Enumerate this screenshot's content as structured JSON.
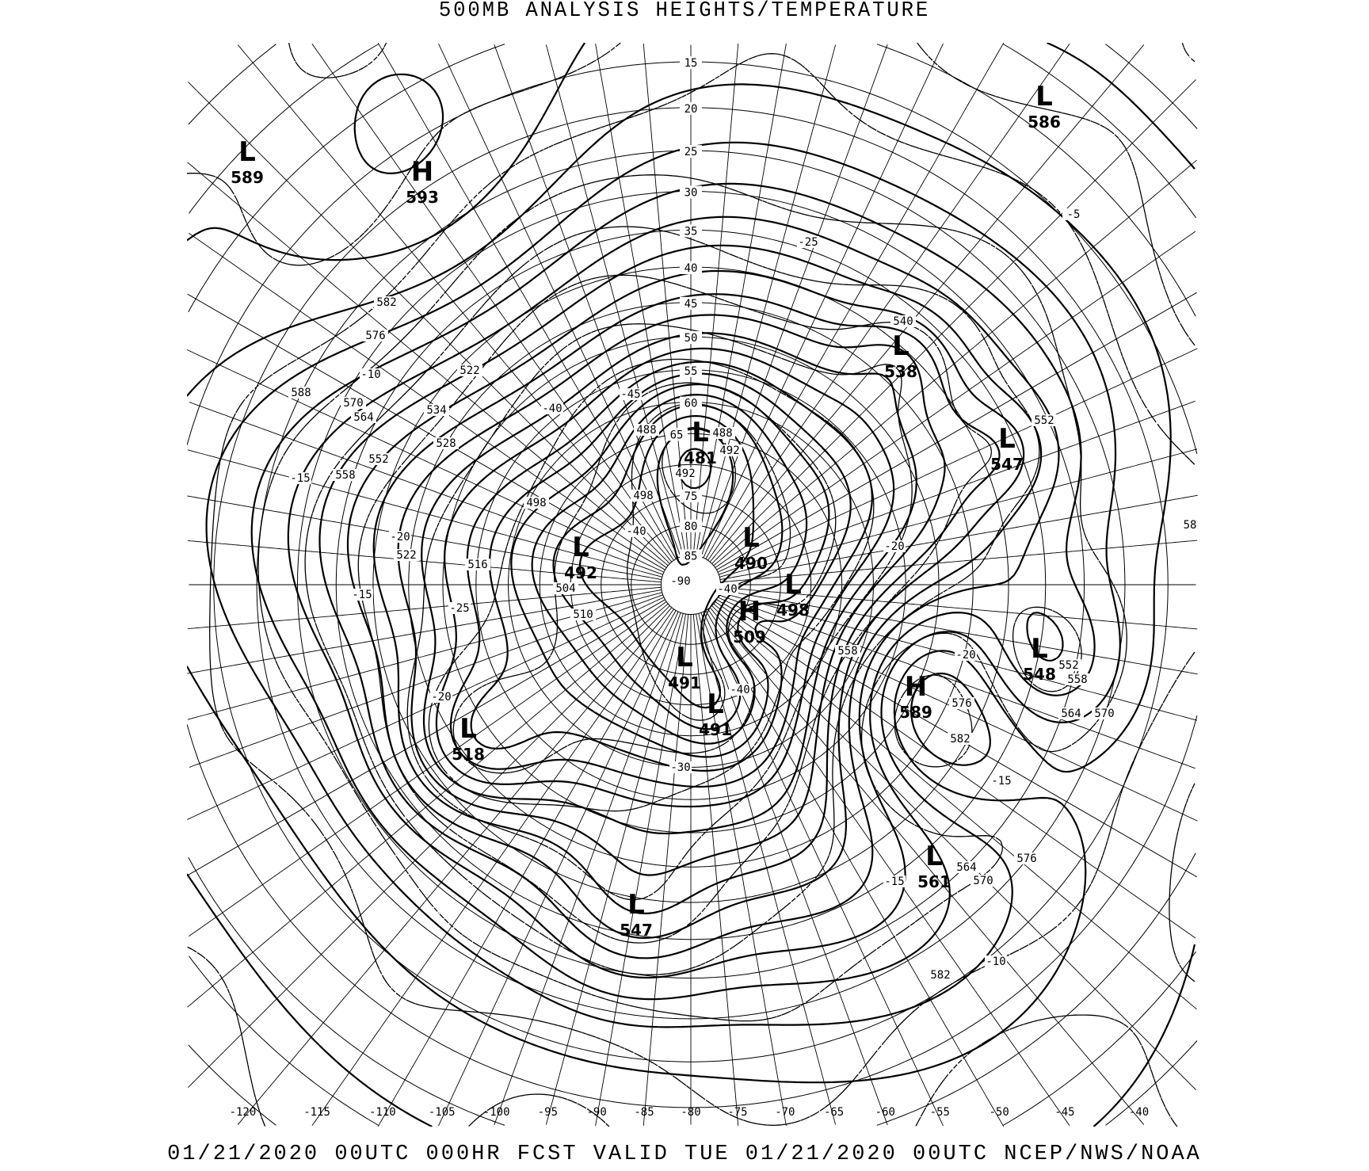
{
  "title": "500MB ANALYSIS  HEIGHTS/TEMPERATURE",
  "footer": "01/21/2020 00UTC 000HR FCST VALID TUE 01/21/2020 00UTC  NCEP/NWS/NOAA",
  "map": {
    "projection": "polar stereographic (north)",
    "height_contour_style": "solid",
    "temperature_contour_style": "dashed",
    "line_color": "#000000",
    "background": "#ffffff"
  },
  "pressure_centers": [
    {
      "type": "L",
      "value": "589"
    },
    {
      "type": "H",
      "value": "593"
    },
    {
      "type": "L",
      "value": "586"
    },
    {
      "type": "L",
      "value": "538"
    },
    {
      "type": "L",
      "value": "547"
    },
    {
      "type": "L",
      "value": "481"
    },
    {
      "type": "L",
      "value": "492"
    },
    {
      "type": "L",
      "value": "490"
    },
    {
      "type": "L",
      "value": "498"
    },
    {
      "type": "H",
      "value": "509"
    },
    {
      "type": "L",
      "value": "491"
    },
    {
      "type": "L",
      "value": "491"
    },
    {
      "type": "H",
      "value": "589"
    },
    {
      "type": "L",
      "value": "548"
    },
    {
      "type": "L",
      "value": "518"
    },
    {
      "type": "L",
      "value": "561"
    },
    {
      "type": "L",
      "value": "547"
    }
  ],
  "height_labels": [
    "582",
    "576",
    "588",
    "570",
    "564",
    "558",
    "552",
    "534",
    "528",
    "522",
    "522",
    "516",
    "504",
    "510",
    "498",
    "498",
    "492",
    "488",
    "488",
    "492",
    "582",
    "576",
    "576",
    "570",
    "564",
    "582",
    "552",
    "558",
    "570",
    "564",
    "558",
    "552",
    "540",
    "58"
  ],
  "temperature_labels": [
    "-5",
    "-25",
    "-10",
    "-15",
    "-20",
    "-15",
    "-25",
    "-40",
    "-45",
    "-40",
    "-90",
    "-40",
    "-20",
    "-20",
    "-15",
    "-15",
    "-10",
    "-20",
    "-30",
    "-40"
  ],
  "latitude_labels": [
    "15",
    "20",
    "25",
    "30",
    "35",
    "40",
    "45",
    "50",
    "55",
    "60",
    "65",
    "75",
    "80",
    "85"
  ],
  "longitude_labels": [
    "-120",
    "-115",
    "-110",
    "-105",
    "-100",
    "-95",
    "-90",
    "-85",
    "-80",
    "-75",
    "-70",
    "-65",
    "-60",
    "-55",
    "-50",
    "-45",
    "-40"
  ]
}
